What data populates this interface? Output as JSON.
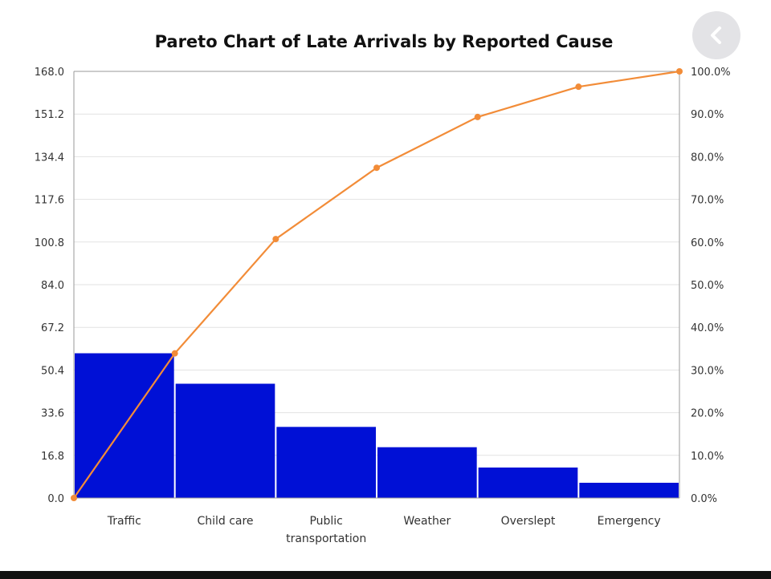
{
  "chart_data": {
    "type": "bar",
    "title": "Pareto Chart of Late Arrivals by Reported Cause",
    "categories": [
      "Traffic",
      "Child care",
      "Public\ntransportation",
      "Weather",
      "Overslept",
      "Emergency"
    ],
    "values": [
      57,
      45,
      28,
      20,
      12,
      6
    ],
    "y_left": {
      "ylim": [
        0,
        168
      ],
      "ticks": [
        "0.0",
        "16.8",
        "33.6",
        "50.4",
        "67.2",
        "84.0",
        "100.8",
        "117.6",
        "134.4",
        "151.2",
        "168.0"
      ]
    },
    "y_right": {
      "ylim": [
        0,
        100
      ],
      "ticks": [
        "0.0%",
        "10.0%",
        "20.0%",
        "30.0%",
        "40.0%",
        "50.0%",
        "60.0%",
        "70.0%",
        "80.0%",
        "90.0%",
        "100.0%"
      ]
    },
    "cumulative_line": {
      "x_positions": [
        "origin",
        "Traffic",
        "Child care",
        "Public\ntransportation",
        "Weather",
        "Overslept",
        "Emergency"
      ],
      "percent": [
        0,
        33.9,
        60.7,
        77.4,
        89.3,
        96.4,
        100.0
      ]
    },
    "grid": true,
    "colors": {
      "bars": "#0010d6",
      "line": "#f28c38",
      "grid": "#e2e2e2"
    }
  },
  "ui": {
    "back_button_icon": "chevron-left-icon"
  }
}
